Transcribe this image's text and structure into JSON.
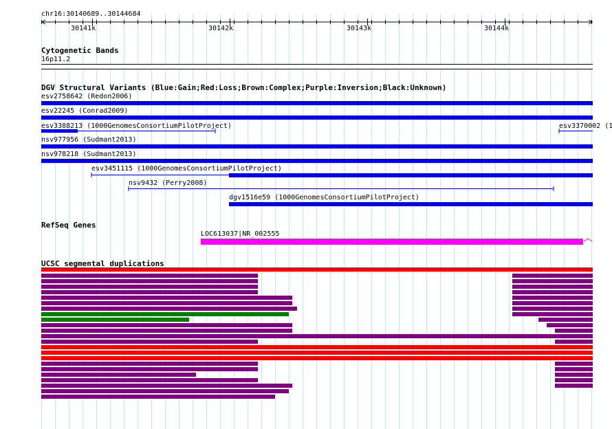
{
  "locus": "chr16:30140689..30144684",
  "ruler": {
    "ticks": [
      "30141k",
      "30142k",
      "30143k",
      "30144k"
    ]
  },
  "tracks": {
    "cytoband": {
      "title": "Cytogenetic Bands",
      "band": "16p11.2"
    },
    "dgv": {
      "title": "DGV Structural Variants (Blue:Gain;Red:Loss;Brown:Complex;Purple:Inversion;Black:Unknown)",
      "features": [
        {
          "label": "esv2758642 (Redon2006)"
        },
        {
          "label": "esv22245 (Conrad2009)"
        },
        {
          "label": "esv3388213 (1000GenomesConsortiumPilotProject)"
        },
        {
          "label": "esv3370002 (1"
        },
        {
          "label": "nsv977956 (Sudmant2013)"
        },
        {
          "label": "nsv978218 (Sudmant2013)"
        },
        {
          "label": "esv3451115 (1000GenomesConsortiumPilotProject)"
        },
        {
          "label": "nsv9432 (Perry2008)"
        },
        {
          "label": "dgv1516e59 (1000GenomesConsortiumPilotProject)"
        }
      ]
    },
    "refseq": {
      "title": "RefSeq Genes",
      "gene": "LOC613037|NR_002555"
    },
    "segdup": {
      "title": "UCSC segmental duplications"
    }
  },
  "colors": {
    "gridline": "#c8e4f4",
    "gain": "#0000ee",
    "gene": "#ff00ff",
    "segdup_red": "#ff0000",
    "segdup_purple": "#800080",
    "segdup_green": "#008000"
  }
}
